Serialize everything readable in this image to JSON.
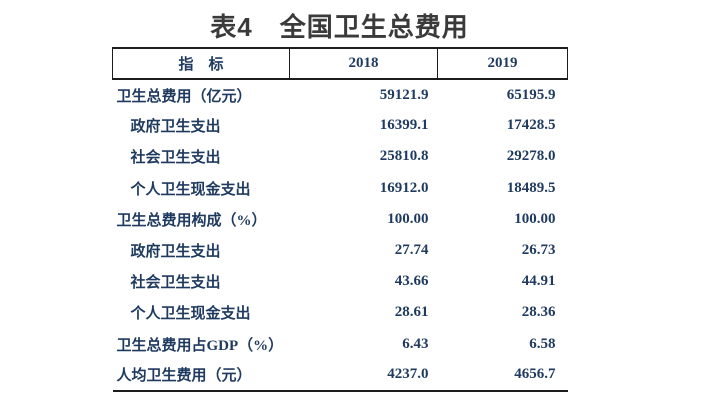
{
  "title": "表4　全国卫生总费用",
  "colors": {
    "title_text": "#3a3a3a",
    "table_text": "#1f3a5f",
    "border": "#1c1c1c",
    "background": "#ffffff"
  },
  "table": {
    "columns": [
      "指　标",
      "2018",
      "2019"
    ],
    "rows": [
      {
        "label": "卫生总费用（亿元）",
        "indent": false,
        "v2018": "59121.9",
        "v2019": "65195.9"
      },
      {
        "label": "政府卫生支出",
        "indent": true,
        "v2018": "16399.1",
        "v2019": "17428.5"
      },
      {
        "label": "社会卫生支出",
        "indent": true,
        "v2018": "25810.8",
        "v2019": "29278.0"
      },
      {
        "label": "个人卫生现金支出",
        "indent": true,
        "v2018": "16912.0",
        "v2019": "18489.5"
      },
      {
        "label": "卫生总费用构成（%）",
        "indent": false,
        "v2018": "100.00",
        "v2019": "100.00"
      },
      {
        "label": "政府卫生支出",
        "indent": true,
        "v2018": "27.74",
        "v2019": "26.73"
      },
      {
        "label": "社会卫生支出",
        "indent": true,
        "v2018": "43.66",
        "v2019": "44.91"
      },
      {
        "label": "个人卫生现金支出",
        "indent": true,
        "v2018": "28.61",
        "v2019": "28.36"
      },
      {
        "label": "卫生总费用占GDP（%）",
        "indent": false,
        "v2018": "6.43",
        "v2019": "6.58"
      },
      {
        "label": "人均卫生费用（元）",
        "indent": false,
        "v2018": "4237.0",
        "v2019": "4656.7"
      }
    ]
  }
}
